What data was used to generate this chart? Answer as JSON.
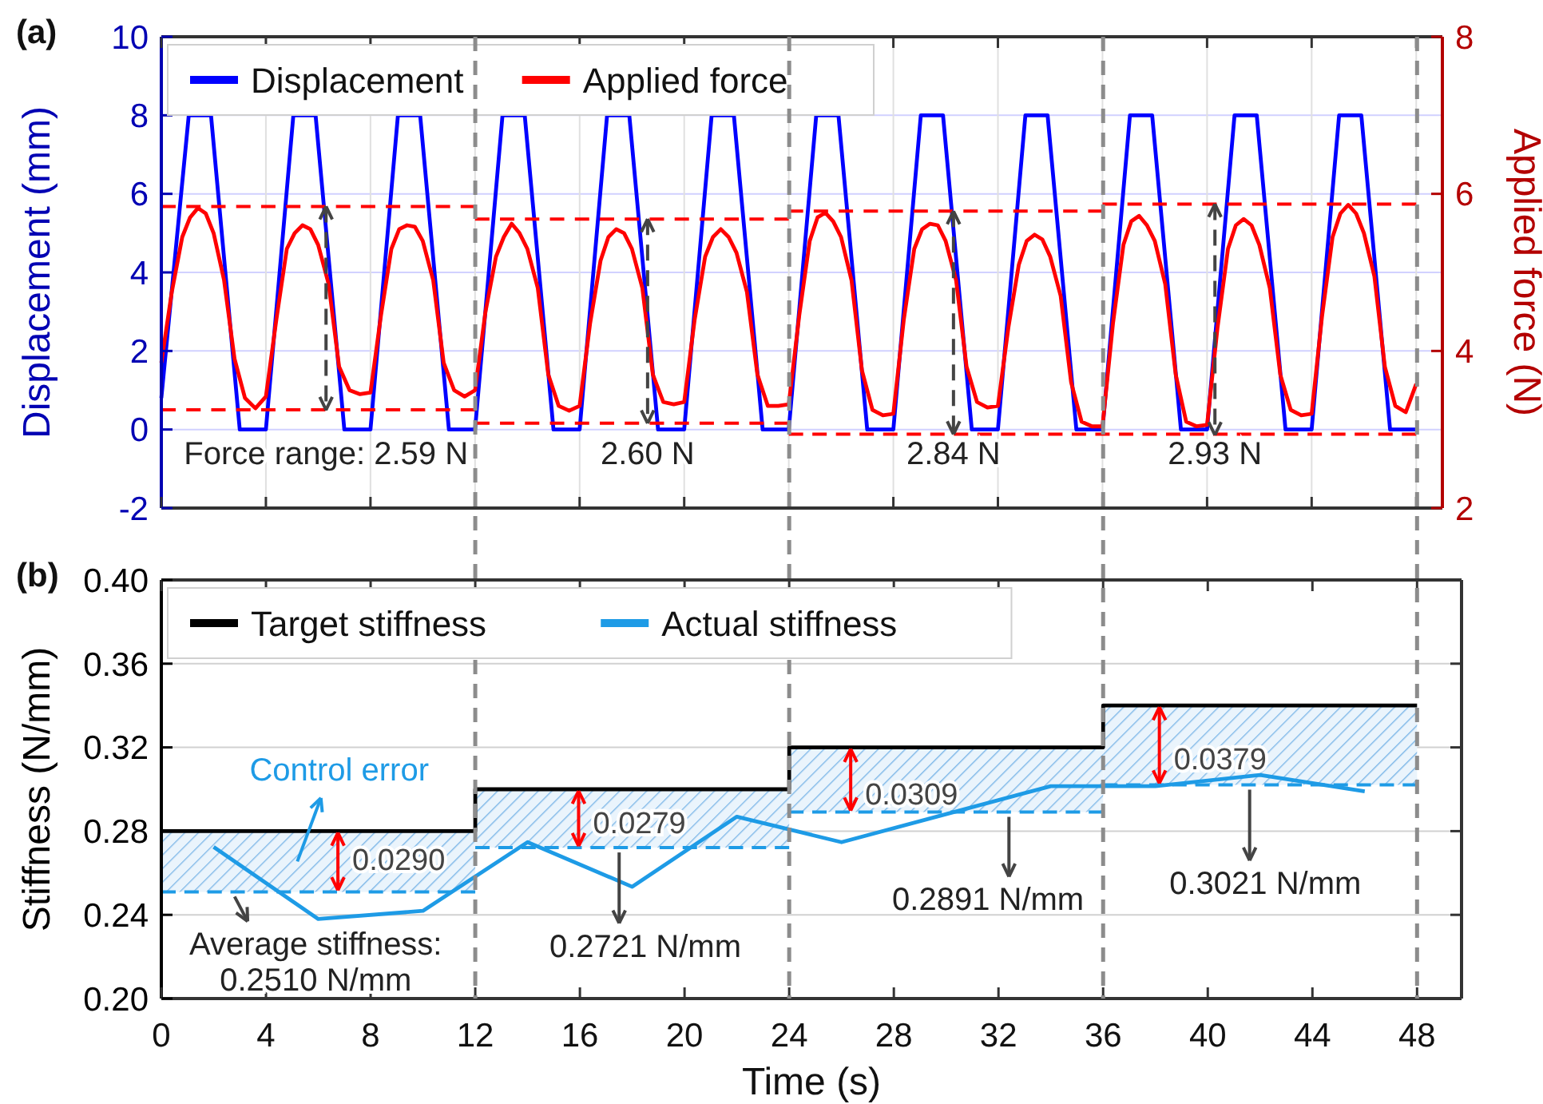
{
  "chart_data": [
    {
      "type": "line",
      "title": "(a)",
      "ylabel": "Displacement (mm)",
      "y2label": "Applied force (N)",
      "xlim": [
        0,
        49
      ],
      "xticks": [
        0,
        4,
        8,
        12,
        16,
        20,
        24,
        28,
        32,
        36,
        40,
        44,
        48
      ],
      "tick_labels": "y",
      "ylim": [
        -2,
        10
      ],
      "yticks": [
        -2,
        0,
        2,
        4,
        6,
        8,
        10
      ],
      "y2lim": [
        2,
        8
      ],
      "y2ticks": [
        2,
        4,
        6,
        8
      ],
      "grid": true,
      "legend": "top left",
      "annotations": [
        {
          "text": "Force range: 2.59 N",
          "x": 6.3,
          "y": 0.5
        },
        {
          "text": "2.60 N",
          "x": 18.6,
          "y": 0.16
        },
        {
          "text": "2.84 N",
          "x": 30.3,
          "y": -0.12
        },
        {
          "text": "2.93 N",
          "x": 40.3,
          "y": -0.14
        }
      ],
      "series": [
        {
          "name": "Displacement",
          "color": "#0000ff",
          "x": [
            0,
            1.05,
            1.9,
            3,
            4,
            5.05,
            5.9,
            7,
            8,
            9.05,
            9.9,
            11,
            12,
            13.05,
            13.9,
            15,
            16,
            17.05,
            17.9,
            19,
            20,
            21.05,
            21.9,
            23,
            24,
            25.05,
            25.9,
            27,
            28,
            29.05,
            29.9,
            31,
            32,
            33.05,
            33.9,
            35,
            36,
            37.05,
            37.9,
            39,
            40,
            41.05,
            41.9,
            43,
            44,
            45.05,
            45.9,
            47,
            48
          ],
          "values": [
            0.8,
            8,
            8,
            0,
            0,
            8,
            8,
            0,
            0,
            8,
            8,
            0,
            0,
            8,
            8,
            0,
            0,
            8,
            8,
            0,
            0,
            8,
            8,
            0,
            0,
            8,
            8,
            0,
            0,
            8,
            8,
            0,
            0,
            8,
            8,
            0,
            0,
            8,
            8,
            0,
            0,
            8,
            8,
            0,
            0,
            8,
            8,
            0,
            0
          ]
        },
        {
          "name": "Applied force",
          "color": "#ff0000",
          "axis": "y2",
          "x": [
            0,
            0.4,
            0.8,
            1.1,
            1.4,
            1.7,
            2,
            2.4,
            2.8,
            3.2,
            3.6,
            4,
            4.4,
            4.8,
            5.1,
            5.4,
            5.7,
            6,
            6.4,
            6.8,
            7.2,
            7.6,
            8,
            8.4,
            8.8,
            9.1,
            9.4,
            9.7,
            10,
            10.4,
            10.8,
            11.2,
            11.6,
            12,
            12.4,
            12.8,
            13.1,
            13.4,
            13.7,
            14,
            14.4,
            14.8,
            15.2,
            15.6,
            16,
            16.4,
            16.8,
            17.1,
            17.4,
            17.7,
            18,
            18.4,
            18.8,
            19.2,
            19.6,
            20,
            20.4,
            20.8,
            21.1,
            21.4,
            21.7,
            22,
            22.4,
            22.8,
            23.2,
            23.6,
            24,
            24.4,
            24.8,
            25.1,
            25.4,
            25.7,
            26,
            26.4,
            26.8,
            27.2,
            27.6,
            28,
            28.4,
            28.8,
            29.1,
            29.4,
            29.7,
            30,
            30.4,
            30.8,
            31.2,
            31.6,
            32,
            32.4,
            32.8,
            33.1,
            33.4,
            33.7,
            34,
            34.4,
            34.8,
            35.2,
            35.6,
            36,
            36.4,
            36.8,
            37.1,
            37.4,
            37.7,
            38,
            38.4,
            38.8,
            39.2,
            39.6,
            40,
            40.4,
            40.8,
            41.1,
            41.4,
            41.7,
            42,
            42.4,
            42.8,
            43.2,
            43.6,
            44,
            44.4,
            44.8,
            45.1,
            45.4,
            45.7,
            46,
            46.4,
            46.8,
            47.2,
            47.6,
            48
          ],
          "values": [
            3.85,
            4.75,
            5.45,
            5.7,
            5.82,
            5.75,
            5.5,
            4.9,
            3.9,
            3.4,
            3.27,
            3.42,
            4.4,
            5.3,
            5.5,
            5.6,
            5.55,
            5.35,
            4.85,
            3.8,
            3.5,
            3.45,
            3.47,
            4.45,
            5.3,
            5.55,
            5.6,
            5.58,
            5.4,
            4.9,
            3.85,
            3.5,
            3.42,
            3.5,
            4.5,
            5.2,
            5.45,
            5.62,
            5.5,
            5.3,
            4.8,
            3.7,
            3.3,
            3.24,
            3.3,
            4.35,
            5.15,
            5.45,
            5.55,
            5.5,
            5.3,
            4.8,
            3.7,
            3.35,
            3.32,
            3.35,
            4.4,
            5.2,
            5.45,
            5.55,
            5.45,
            5.25,
            4.75,
            3.7,
            3.3,
            3.3,
            3.32,
            4.45,
            5.4,
            5.7,
            5.76,
            5.65,
            5.45,
            4.9,
            3.75,
            3.25,
            3.18,
            3.2,
            4.4,
            5.3,
            5.55,
            5.62,
            5.6,
            5.4,
            4.9,
            3.8,
            3.35,
            3.28,
            3.3,
            4.3,
            5.1,
            5.4,
            5.48,
            5.42,
            5.2,
            4.7,
            3.6,
            3.1,
            3.04,
            3.04,
            4.35,
            5.35,
            5.65,
            5.72,
            5.6,
            5.4,
            4.85,
            3.7,
            3.1,
            3.04,
            3.06,
            4.3,
            5.3,
            5.6,
            5.68,
            5.6,
            5.35,
            4.8,
            3.7,
            3.25,
            3.18,
            3.2,
            4.45,
            5.45,
            5.75,
            5.86,
            5.75,
            5.5,
            4.95,
            3.8,
            3.3,
            3.22,
            3.58
          ]
        },
        {
          "color": "#ff0000",
          "axis": "y2",
          "line_style": "dashed",
          "x": [
            0,
            12
          ],
          "values": [
            5.84,
            5.84
          ]
        },
        {
          "color": "#ff0000",
          "axis": "y2",
          "line_style": "dashed",
          "x": [
            12,
            24
          ],
          "values": [
            5.68,
            5.68
          ]
        },
        {
          "color": "#ff0000",
          "axis": "y2",
          "line_style": "dashed",
          "x": [
            24,
            36
          ],
          "values": [
            5.78,
            5.78
          ]
        },
        {
          "color": "#ff0000",
          "axis": "y2",
          "line_style": "dashed",
          "x": [
            36,
            48
          ],
          "values": [
            5.87,
            5.87
          ]
        },
        {
          "color": "#ff0000",
          "axis": "y2",
          "line_style": "dashed",
          "x": [
            0,
            12
          ],
          "values": [
            3.25,
            3.25
          ]
        },
        {
          "color": "#ff0000",
          "axis": "y2",
          "line_style": "dashed",
          "x": [
            12,
            24
          ],
          "values": [
            3.08,
            3.08
          ]
        },
        {
          "color": "#ff0000",
          "axis": "y2",
          "line_style": "dashed",
          "x": [
            24,
            48
          ],
          "values": [
            2.94,
            2.94
          ]
        }
      ]
    },
    {
      "type": "line",
      "title": "(b)",
      "xlabel": "Time (s)",
      "ylabel": "Stiffness (N/mm)",
      "xlim": [
        0,
        49.7
      ],
      "xticks": [
        0,
        4,
        8,
        12,
        16,
        20,
        24,
        28,
        32,
        36,
        40,
        44,
        48
      ],
      "ylim": [
        0.2,
        0.4
      ],
      "yticks": [
        {
          "value": 0.2,
          "label": "0.20"
        },
        {
          "value": 0.24,
          "label": "0.24"
        },
        {
          "value": 0.28,
          "label": "0.28"
        },
        {
          "value": 0.32,
          "label": "0.32"
        },
        {
          "value": 0.36,
          "label": "0.36"
        },
        {
          "value": 0.4,
          "label": "0.40"
        }
      ],
      "grid": "y",
      "legend": "top left",
      "ref_lines": [
        {
          "axis": "x",
          "value": 12,
          "color": "#8c8c8c",
          "line_style": "dashed"
        },
        {
          "axis": "x",
          "value": 24,
          "color": "#8c8c8c",
          "line_style": "dashed"
        },
        {
          "axis": "x",
          "value": 36,
          "color": "#8c8c8c",
          "line_style": "dashed"
        },
        {
          "axis": "x",
          "value": 48,
          "color": "#8c8c8c",
          "line_style": "dashed"
        }
      ],
      "annotations": [
        "Control error",
        "0.0290",
        "0.0279",
        "0.0309",
        "0.0379",
        {
          "text": "Average stiffness:",
          "x": 2.8,
          "y": 0.251
        },
        "0.2510 N/mm",
        {
          "text": "0.2721 N/mm",
          "x": 17.5,
          "y": 0.2721
        },
        {
          "text": "0.2891 N/mm",
          "x": 32.4,
          "y": 0.2891
        },
        {
          "text": "0.3021 N/mm",
          "x": 41.6,
          "y": 0.3021
        }
      ],
      "series": [
        {
          "name": "Target stiffness",
          "type": "step",
          "color": "#000000",
          "x": [
            0,
            12,
            24,
            36,
            48
          ],
          "values": [
            0.28,
            0.3,
            0.32,
            0.34,
            0.34
          ]
        },
        {
          "name": "Actual stiffness",
          "color": "#1e9be6",
          "x": [
            2,
            6,
            10,
            14,
            18,
            22,
            26,
            30,
            34,
            38,
            42,
            46
          ],
          "values": [
            0.2724,
            0.238,
            0.2419,
            0.2747,
            0.2534,
            0.2869,
            0.2747,
            0.2881,
            0.3015,
            0.3015,
            0.3068,
            0.299
          ]
        },
        {
          "color": "#1e9be6",
          "line_style": "dashed",
          "x": [
            0,
            12
          ],
          "values": [
            0.251,
            0.251
          ],
          "lower": [
            0.251,
            0.251
          ],
          "upper": [
            0.28,
            0.28
          ]
        },
        {
          "color": "#1e9be6",
          "line_style": "dashed",
          "x": [
            12,
            24
          ],
          "values": [
            0.2721,
            0.2721
          ],
          "lower": [
            0.2721,
            0.2721
          ],
          "upper": [
            0.3,
            0.3
          ]
        },
        {
          "color": "#1e9be6",
          "line_style": "dashed",
          "x": [
            24,
            36
          ],
          "values": [
            0.2891,
            0.2891
          ],
          "lower": [
            0.2891,
            0.2891
          ],
          "upper": [
            0.32,
            0.32
          ]
        },
        {
          "color": "#1e9be6",
          "line_style": "dashed",
          "x": [
            36,
            48
          ],
          "values": [
            0.3021,
            0.3021
          ],
          "lower": [
            0.3021,
            0.3021
          ],
          "upper": [
            0.34,
            0.34
          ]
        }
      ]
    }
  ]
}
